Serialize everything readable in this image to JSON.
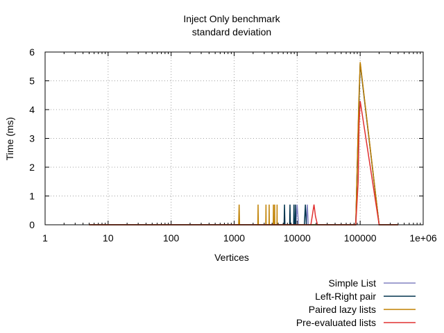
{
  "chart_data": {
    "type": "line",
    "title": "Inject Only benchmark",
    "subtitle": "standard deviation",
    "xlabel": "Vertices",
    "ylabel": "Time (ms)",
    "xscale": "log",
    "xlim": [
      1,
      1000000
    ],
    "ylim": [
      0,
      6
    ],
    "grid": true,
    "legend_position": "bottom-right",
    "x_tick_labels": [
      "1",
      "10",
      "100",
      "1000",
      "10000",
      "100000",
      "1e+06"
    ],
    "y_tick_labels": [
      "0",
      "1",
      "2",
      "3",
      "4",
      "5",
      "6"
    ],
    "x_ticks": [
      1,
      10,
      100,
      1000,
      10000,
      100000,
      1000000
    ],
    "y_ticks": [
      0,
      1,
      2,
      3,
      4,
      5,
      6
    ],
    "series": [
      {
        "name": "Simple List",
        "color": "#8080c0",
        "points": [
          [
            5,
            0
          ],
          [
            1000,
            0
          ],
          [
            9500,
            0
          ],
          [
            10000,
            0.7
          ],
          [
            10500,
            0
          ],
          [
            14000,
            0
          ],
          [
            14500,
            0.7
          ],
          [
            15000,
            0
          ],
          [
            85000,
            0
          ],
          [
            95000,
            4.0
          ],
          [
            100000,
            5.6
          ],
          [
            200000,
            0
          ],
          [
            400000,
            0
          ]
        ]
      },
      {
        "name": "Left-Right pair",
        "color": "#00334d",
        "points": [
          [
            5,
            0
          ],
          [
            6200,
            0
          ],
          [
            6300,
            0.7
          ],
          [
            6400,
            0
          ],
          [
            7600,
            0
          ],
          [
            7700,
            0.7
          ],
          [
            7800,
            0
          ],
          [
            8800,
            0
          ],
          [
            8900,
            0.7
          ],
          [
            9000,
            0
          ],
          [
            9300,
            0
          ],
          [
            9400,
            0.7
          ],
          [
            9500,
            0
          ],
          [
            13000,
            0
          ],
          [
            13500,
            0.7
          ],
          [
            14000,
            0
          ],
          [
            85000,
            0
          ],
          [
            95000,
            4.0
          ],
          [
            100000,
            5.6
          ],
          [
            200000,
            0
          ],
          [
            400000,
            0
          ]
        ]
      },
      {
        "name": "Paired lazy lists",
        "color": "#c08000",
        "points": [
          [
            5,
            0
          ],
          [
            1180,
            0
          ],
          [
            1200,
            0.7
          ],
          [
            1220,
            0
          ],
          [
            2380,
            0
          ],
          [
            2400,
            0.7
          ],
          [
            2420,
            0
          ],
          [
            3180,
            0
          ],
          [
            3200,
            0.7
          ],
          [
            3220,
            0
          ],
          [
            3580,
            0
          ],
          [
            3600,
            0.7
          ],
          [
            3620,
            0
          ],
          [
            4180,
            0
          ],
          [
            4200,
            0.7
          ],
          [
            4220,
            0
          ],
          [
            4380,
            0
          ],
          [
            4400,
            0.7
          ],
          [
            4420,
            0
          ],
          [
            4780,
            0
          ],
          [
            4800,
            0.7
          ],
          [
            4820,
            0
          ],
          [
            85000,
            0
          ],
          [
            95000,
            4.2
          ],
          [
            100000,
            5.65
          ],
          [
            200000,
            0
          ],
          [
            400000,
            0
          ]
        ]
      },
      {
        "name": "Pre-evaluated lists",
        "color": "#e03030",
        "points": [
          [
            5,
            0
          ],
          [
            16500,
            0
          ],
          [
            17500,
            0.35
          ],
          [
            18500,
            0.7
          ],
          [
            19500,
            0.3
          ],
          [
            21000,
            0
          ],
          [
            85000,
            0
          ],
          [
            93000,
            1.5
          ],
          [
            96000,
            3.5
          ],
          [
            100000,
            4.3
          ],
          [
            200000,
            0
          ],
          [
            400000,
            0
          ]
        ]
      }
    ]
  }
}
